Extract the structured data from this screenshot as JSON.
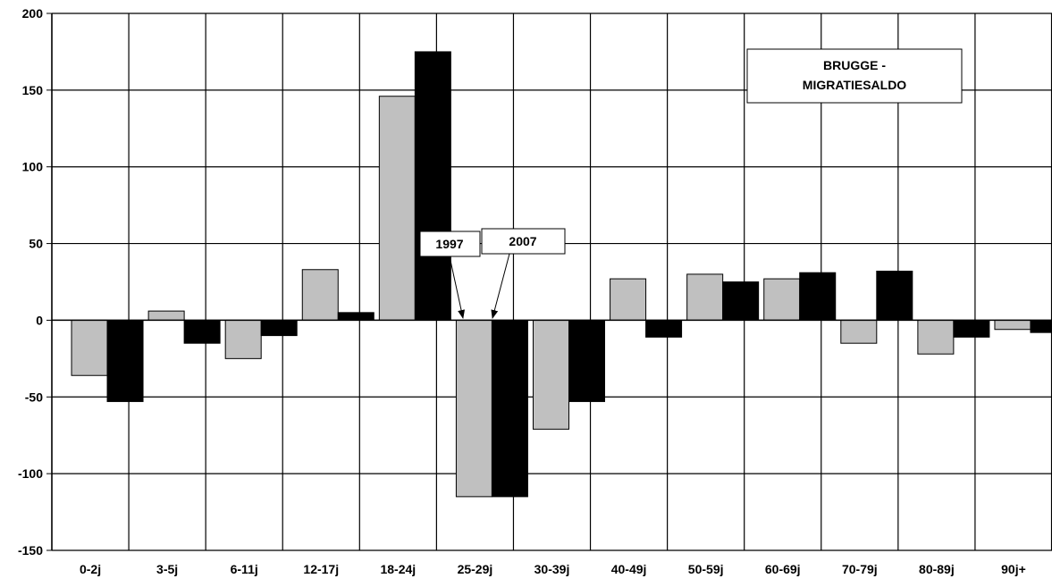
{
  "chart_data": {
    "type": "bar",
    "title": "BRUGGE - MIGRATIESALDO",
    "title_lines": [
      "BRUGGE -",
      "MIGRATIESALDO"
    ],
    "categories": [
      "0-2j",
      "3-5j",
      "6-11j",
      "12-17j",
      "18-24j",
      "25-29j",
      "30-39j",
      "40-49j",
      "50-59j",
      "60-69j",
      "70-79j",
      "80-89j",
      "90j+"
    ],
    "series": [
      {
        "name": "1997",
        "color": "#c0c0c0",
        "values": [
          -36,
          6,
          -25,
          33,
          146,
          -115,
          -71,
          27,
          30,
          27,
          -15,
          -22,
          -6
        ]
      },
      {
        "name": "2007",
        "color": "#000000",
        "values": [
          -53,
          -15,
          -10,
          5,
          175,
          -115,
          -53,
          -11,
          25,
          31,
          32,
          -11,
          -8
        ]
      }
    ],
    "ylim": [
      -150,
      200
    ],
    "yticks": [
      -150,
      -100,
      -50,
      0,
      50,
      100,
      150,
      200
    ],
    "ytick_labels": [
      "-150",
      "-100",
      "-50",
      "0",
      "50",
      "100",
      "150",
      "200"
    ],
    "xlabel": "",
    "ylabel": "",
    "grid": "horizontal and vertical",
    "legend": "callout labels pointing to 25-29j bars"
  }
}
